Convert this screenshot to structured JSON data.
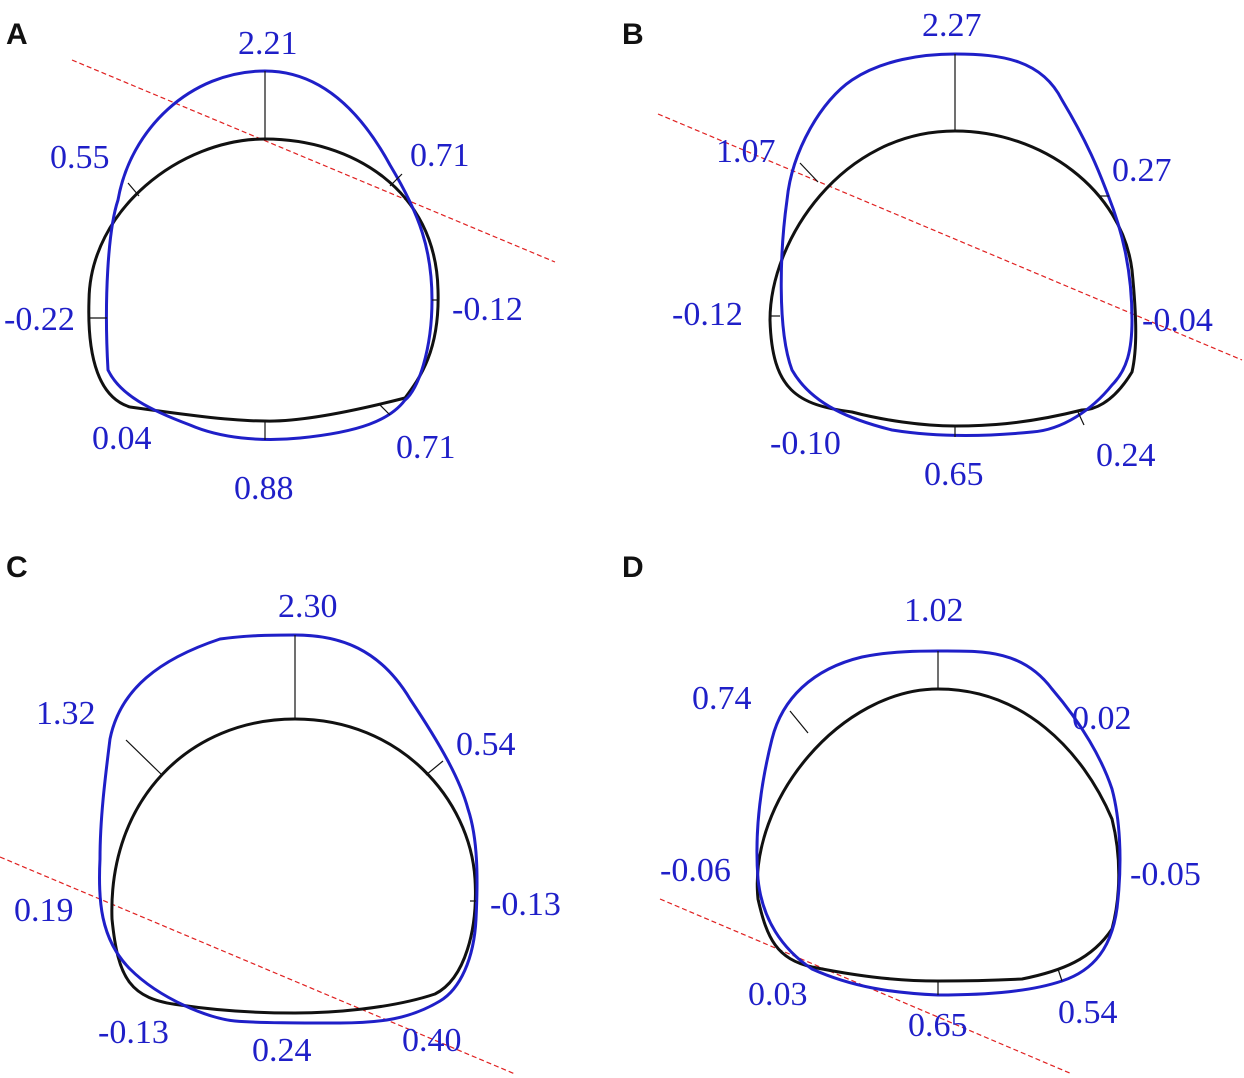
{
  "colors": {
    "original_profile": "#111111",
    "deformed_profile": "#1f1fc8",
    "reference_line": "#e02020",
    "labels": "#1f1fc8"
  },
  "panels": [
    {
      "letter": "A",
      "values": {
        "top": "2.21",
        "upper_left": "0.55",
        "upper_right": "0.71",
        "left": "-0.22",
        "right": "-0.12",
        "lower_left": "0.04",
        "bottom": "0.88",
        "lower_right": "0.71"
      }
    },
    {
      "letter": "B",
      "values": {
        "top": "2.27",
        "upper_left": "1.07",
        "upper_right": "0.27",
        "left": "-0.12",
        "right": "-0.04",
        "lower_left": "-0.10",
        "bottom": "0.65",
        "lower_right": "0.24"
      }
    },
    {
      "letter": "C",
      "values": {
        "top": "2.30",
        "upper_left": "1.32",
        "upper_right": "0.54",
        "left": "0.19",
        "right": "-0.13",
        "lower_left": "-0.13",
        "bottom": "0.24",
        "lower_right": "0.40"
      }
    },
    {
      "letter": "D",
      "values": {
        "top": "1.02",
        "upper_left": "0.74",
        "upper_right": "0.02",
        "left": "-0.06",
        "right": "-0.05",
        "lower_left": "0.03",
        "bottom": "0.65",
        "lower_right": "0.54"
      }
    }
  ]
}
